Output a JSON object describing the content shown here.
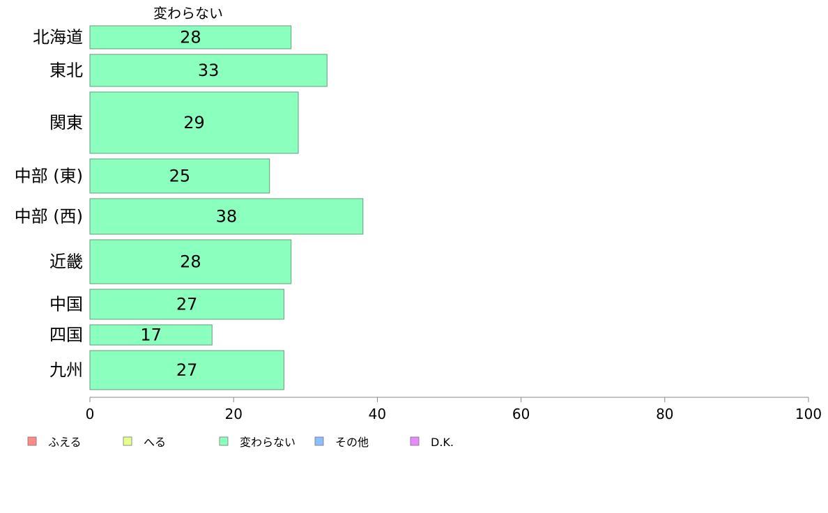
{
  "chart_data": {
    "type": "bar",
    "orientation": "horizontal",
    "series_title": "変わらない",
    "categories": [
      "北海道",
      "東北",
      "関東",
      "中部 (東)",
      "中部 (西)",
      "近畿",
      "中国",
      "四国",
      "九州"
    ],
    "values": [
      28,
      33,
      29,
      25,
      38,
      28,
      27,
      17,
      27
    ],
    "xlim": [
      0,
      100
    ],
    "xticks": [
      0,
      20,
      40,
      60,
      80,
      100
    ],
    "grid": false,
    "bar_color": "#8AFFBE",
    "bar_stroke": "#6a9a80",
    "legend_position": "bottom",
    "legend": [
      {
        "label": "ふえる",
        "color": "#FF8A8A"
      },
      {
        "label": "へる",
        "color": "#E5FF8A"
      },
      {
        "label": "変わらない",
        "color": "#8AFFBE"
      },
      {
        "label": "その他",
        "color": "#8ABEFF"
      },
      {
        "label": "D.K.",
        "color": "#E58AFF"
      }
    ]
  }
}
